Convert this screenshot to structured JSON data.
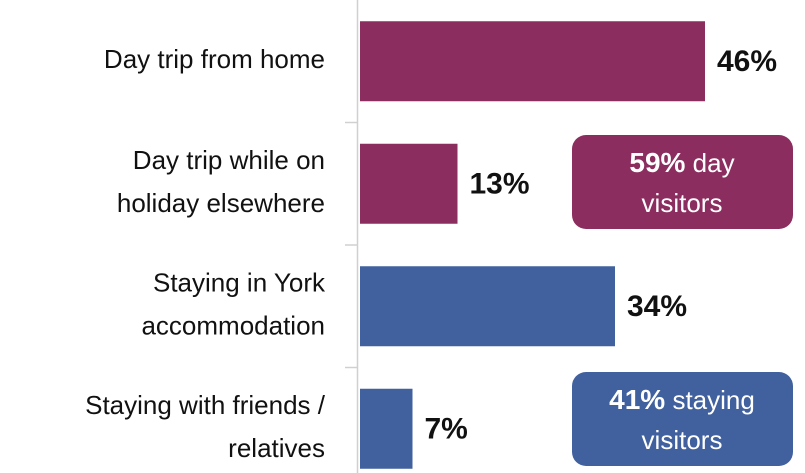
{
  "chart_data": {
    "type": "bar",
    "orientation": "horizontal",
    "categories": [
      [
        "Day trip from home"
      ],
      [
        "Day trip while on",
        "holiday elsewhere"
      ],
      [
        "Staying in York",
        "accommodation"
      ],
      [
        "Staying with friends /",
        "relatives"
      ]
    ],
    "values": [
      46,
      13,
      34,
      7
    ],
    "value_labels": [
      "46%",
      "13%",
      "34%",
      "7%"
    ],
    "colors": [
      "#8b2e5f",
      "#8b2e5f",
      "#41619e",
      "#41619e"
    ],
    "annotations": [
      {
        "bold": "59%",
        "text": "day",
        "line2": "visitors",
        "color": "#8b2e5f"
      },
      {
        "bold": "41%",
        "text": "staying",
        "line2": "visitors",
        "color": "#41619e"
      }
    ]
  }
}
